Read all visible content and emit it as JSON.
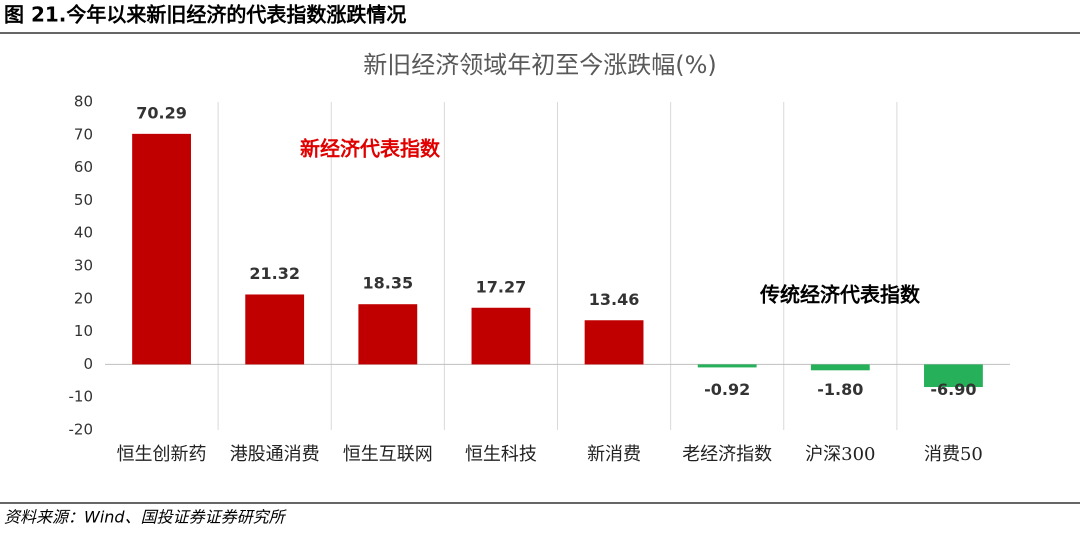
{
  "header": {
    "title": "图 21.今年以来新旧经济的代表指数涨跌情况"
  },
  "source": "资料来源：Wind、国投证券证券研究所",
  "chart_data": {
    "type": "bar",
    "title": "新旧经济领域年初至今涨跌幅(%)",
    "categories": [
      "恒生创新药",
      "港股通消费",
      "恒生互联网",
      "恒生科技",
      "新消费",
      "老经济指数",
      "沪深300",
      "消费50"
    ],
    "values": [
      70.29,
      21.32,
      18.35,
      17.27,
      13.46,
      -0.92,
      -1.8,
      -6.9
    ],
    "value_labels": [
      "70.29",
      "21.32",
      "18.35",
      "17.27",
      "13.46",
      "-0.92",
      "-1.80",
      "-6.90"
    ],
    "colors": [
      "#c00000",
      "#c00000",
      "#c00000",
      "#c00000",
      "#c00000",
      "#27b05a",
      "#27b05a",
      "#27b05a"
    ],
    "ylim": [
      -20,
      80
    ],
    "yticks": [
      -20,
      -10,
      0,
      10,
      20,
      30,
      40,
      50,
      60,
      70,
      80
    ],
    "annotations": [
      {
        "text": "新经济代表指数",
        "color": "#e00000"
      },
      {
        "text": "传统经济代表指数",
        "color": "#000000"
      }
    ]
  }
}
